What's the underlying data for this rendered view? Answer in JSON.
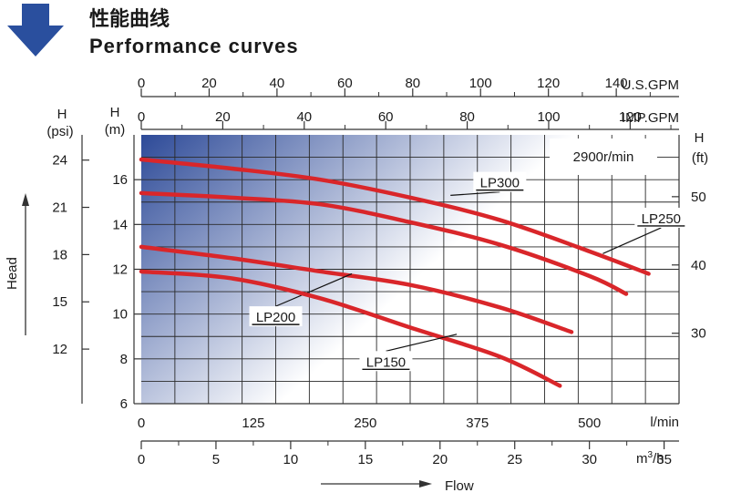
{
  "header": {
    "title_cn": "性能曲线",
    "title_en": "Performance curves",
    "arrow_icon": "down-arrow-icon",
    "arrow_color": "#2a4f9e"
  },
  "chart_data": {
    "type": "line",
    "speed_label": "2900r/min",
    "line_color": "#d9262a",
    "y_axis_label": "Head",
    "x_axis_label": "Flow",
    "axes": {
      "x_lmin": {
        "unit": "l/min",
        "range": [
          0,
          600
        ],
        "ticks": [
          "0",
          "125",
          "250",
          "375",
          "500"
        ],
        "tick_values": [
          0,
          125,
          250,
          375,
          500
        ]
      },
      "x_m3h": {
        "unit": "m",
        "unit_sup": "3",
        "unit_suffix": "/h",
        "range": [
          0,
          36
        ],
        "ticks": [
          "0",
          "5",
          "10",
          "15",
          "20",
          "25",
          "30",
          "35"
        ],
        "tick_values": [
          0,
          5,
          10,
          15,
          20,
          25,
          30,
          35
        ]
      },
      "x_usgpm": {
        "unit": "U.S.GPM",
        "range": [
          0,
          158.5
        ],
        "ticks": [
          "0",
          "20",
          "40",
          "60",
          "80",
          "100",
          "120",
          "140"
        ],
        "tick_values": [
          0,
          20,
          40,
          60,
          80,
          100,
          120,
          140
        ]
      },
      "x_impgpm": {
        "unit": "IMP.GPM",
        "range": [
          0,
          132
        ],
        "ticks": [
          "0",
          "20",
          "40",
          "60",
          "80",
          "100",
          "120"
        ],
        "tick_values": [
          0,
          20,
          40,
          60,
          80,
          100,
          120
        ]
      },
      "y_m": {
        "unit_h": "H",
        "unit": "(m)",
        "range": [
          6,
          18
        ],
        "ticks": [
          "6",
          "8",
          "10",
          "12",
          "14",
          "16"
        ],
        "tick_values": [
          6,
          8,
          10,
          12,
          14,
          16
        ]
      },
      "y_psi": {
        "unit_h": "H",
        "unit": "(psi)",
        "ticks": [
          "12",
          "15",
          "18",
          "21",
          "24"
        ],
        "tick_values": [
          12,
          15,
          18,
          21,
          24
        ]
      },
      "y_ft": {
        "unit_h": "H",
        "unit": "(ft)",
        "ticks": [
          "30",
          "40",
          "50"
        ],
        "tick_values": [
          30,
          40,
          50
        ]
      }
    },
    "series": [
      {
        "name": "LP300",
        "x": [
          0,
          100,
          200,
          300,
          400,
          500,
          566
        ],
        "y": [
          16.9,
          16.5,
          16.0,
          15.2,
          14.2,
          12.8,
          11.8
        ],
        "label_at": [
          400,
          15.9
        ],
        "leader_to": [
          345,
          15.3
        ]
      },
      {
        "name": "LP250",
        "x": [
          0,
          100,
          200,
          300,
          400,
          500,
          541
        ],
        "y": [
          15.4,
          15.2,
          14.9,
          14.1,
          13.1,
          11.7,
          10.9
        ],
        "label_at": [
          580,
          14.3
        ],
        "leader_to": [
          515,
          12.7
        ]
      },
      {
        "name": "LP200",
        "x": [
          0,
          100,
          200,
          300,
          400,
          480
        ],
        "y": [
          13.0,
          12.5,
          11.9,
          11.3,
          10.3,
          9.2
        ],
        "label_at": [
          150,
          9.9
        ],
        "leader_to": [
          235,
          11.8
        ]
      },
      {
        "name": "LP150",
        "x": [
          0,
          100,
          200,
          300,
          400,
          467
        ],
        "y": [
          11.9,
          11.6,
          10.7,
          9.4,
          8.1,
          6.8
        ],
        "label_at": [
          273,
          7.9
        ],
        "leader_to": [
          352,
          9.1
        ]
      }
    ]
  }
}
